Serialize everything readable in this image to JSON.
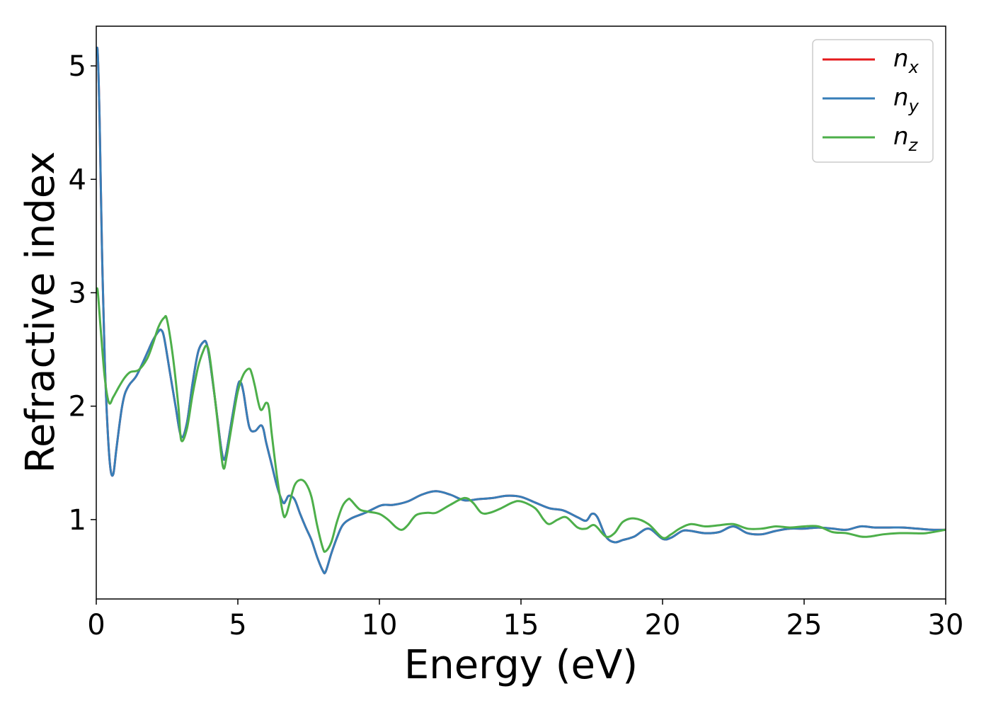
{
  "chart_data": {
    "type": "line",
    "title": "",
    "xlabel": "Energy (eV)",
    "ylabel": "Refractive index",
    "xlim": [
      0,
      30
    ],
    "ylim": [
      0.3,
      5.35
    ],
    "xticks": [
      0,
      5,
      10,
      15,
      20,
      25,
      30
    ],
    "yticks": [
      1,
      2,
      3,
      4,
      5
    ],
    "grid": false,
    "legend_position": "top-right",
    "series": [
      {
        "name": "n",
        "subscript": "x",
        "color": "#e41a1c",
        "x": [
          0.0,
          0.05,
          0.12,
          0.2,
          0.3,
          0.4,
          0.5,
          0.6,
          0.7,
          0.8,
          0.9,
          1.0,
          1.1,
          1.2,
          1.4,
          1.6,
          1.8,
          2.0,
          2.2,
          2.3,
          2.4,
          2.6,
          2.8,
          3.0,
          3.2,
          3.4,
          3.6,
          3.8,
          3.9,
          4.0,
          4.2,
          4.4,
          4.5,
          4.6,
          4.8,
          5.0,
          5.1,
          5.2,
          5.4,
          5.6,
          5.8,
          5.9,
          6.0,
          6.2,
          6.4,
          6.6,
          6.7,
          6.8,
          7.0,
          7.2,
          7.4,
          7.6,
          7.8,
          8.0,
          8.1,
          8.3,
          8.5,
          8.7,
          9.0,
          9.5,
          10.0,
          10.2,
          10.5,
          11.0,
          11.5,
          12.0,
          12.5,
          13.0,
          13.5,
          14.0,
          14.5,
          15.0,
          15.5,
          16.0,
          16.5,
          17.0,
          17.3,
          17.5,
          17.7,
          18.0,
          18.3,
          18.6,
          19.0,
          19.5,
          20.0,
          20.3,
          20.7,
          21.0,
          21.5,
          22.0,
          22.5,
          23.0,
          23.5,
          24.0,
          24.5,
          25.0,
          25.5,
          26.0,
          26.5,
          27.0,
          27.5,
          28.0,
          28.5,
          29.0,
          29.5,
          30.0
        ],
        "y": [
          5.1,
          5.12,
          4.5,
          3.4,
          2.4,
          1.8,
          1.45,
          1.4,
          1.6,
          1.8,
          1.98,
          2.1,
          2.16,
          2.2,
          2.26,
          2.36,
          2.47,
          2.58,
          2.66,
          2.67,
          2.6,
          2.3,
          2.0,
          1.73,
          1.85,
          2.2,
          2.48,
          2.57,
          2.55,
          2.42,
          2.05,
          1.65,
          1.53,
          1.6,
          1.9,
          2.18,
          2.21,
          2.12,
          1.82,
          1.78,
          1.83,
          1.8,
          1.68,
          1.48,
          1.28,
          1.15,
          1.17,
          1.21,
          1.18,
          1.05,
          0.93,
          0.82,
          0.67,
          0.55,
          0.54,
          0.7,
          0.84,
          0.95,
          1.01,
          1.06,
          1.12,
          1.13,
          1.13,
          1.16,
          1.22,
          1.25,
          1.22,
          1.17,
          1.18,
          1.19,
          1.21,
          1.2,
          1.15,
          1.1,
          1.08,
          1.02,
          0.99,
          1.05,
          1.02,
          0.85,
          0.8,
          0.82,
          0.85,
          0.92,
          0.83,
          0.84,
          0.9,
          0.9,
          0.88,
          0.89,
          0.94,
          0.88,
          0.87,
          0.9,
          0.92,
          0.92,
          0.93,
          0.92,
          0.91,
          0.94,
          0.93,
          0.93,
          0.93,
          0.92,
          0.91,
          0.91
        ]
      },
      {
        "name": "n",
        "subscript": "y",
        "color": "#377eb8",
        "x": [
          0.0,
          0.05,
          0.12,
          0.2,
          0.3,
          0.4,
          0.5,
          0.6,
          0.7,
          0.8,
          0.9,
          1.0,
          1.1,
          1.2,
          1.4,
          1.6,
          1.8,
          2.0,
          2.2,
          2.3,
          2.4,
          2.6,
          2.8,
          3.0,
          3.2,
          3.4,
          3.6,
          3.8,
          3.9,
          4.0,
          4.2,
          4.4,
          4.5,
          4.6,
          4.8,
          5.0,
          5.1,
          5.2,
          5.4,
          5.6,
          5.8,
          5.9,
          6.0,
          6.2,
          6.4,
          6.6,
          6.7,
          6.8,
          7.0,
          7.2,
          7.4,
          7.6,
          7.8,
          8.0,
          8.1,
          8.3,
          8.5,
          8.7,
          9.0,
          9.5,
          10.0,
          10.2,
          10.5,
          11.0,
          11.5,
          12.0,
          12.5,
          13.0,
          13.5,
          14.0,
          14.5,
          15.0,
          15.5,
          16.0,
          16.5,
          17.0,
          17.3,
          17.5,
          17.7,
          18.0,
          18.3,
          18.6,
          19.0,
          19.5,
          20.0,
          20.3,
          20.7,
          21.0,
          21.5,
          22.0,
          22.5,
          23.0,
          23.5,
          24.0,
          24.5,
          25.0,
          25.5,
          26.0,
          26.5,
          27.0,
          27.5,
          28.0,
          28.5,
          29.0,
          29.5,
          30.0
        ],
        "y": [
          5.1,
          5.12,
          4.5,
          3.4,
          2.4,
          1.8,
          1.45,
          1.4,
          1.6,
          1.8,
          1.98,
          2.1,
          2.16,
          2.2,
          2.26,
          2.36,
          2.47,
          2.58,
          2.66,
          2.67,
          2.6,
          2.3,
          2.0,
          1.73,
          1.85,
          2.2,
          2.48,
          2.57,
          2.55,
          2.42,
          2.05,
          1.65,
          1.53,
          1.6,
          1.9,
          2.18,
          2.21,
          2.12,
          1.82,
          1.78,
          1.83,
          1.8,
          1.68,
          1.48,
          1.28,
          1.15,
          1.17,
          1.21,
          1.18,
          1.05,
          0.93,
          0.82,
          0.67,
          0.55,
          0.54,
          0.7,
          0.84,
          0.95,
          1.01,
          1.06,
          1.12,
          1.13,
          1.13,
          1.16,
          1.22,
          1.25,
          1.22,
          1.17,
          1.18,
          1.19,
          1.21,
          1.2,
          1.15,
          1.1,
          1.08,
          1.02,
          0.99,
          1.05,
          1.02,
          0.85,
          0.8,
          0.82,
          0.85,
          0.92,
          0.83,
          0.84,
          0.9,
          0.9,
          0.88,
          0.89,
          0.94,
          0.88,
          0.87,
          0.9,
          0.92,
          0.92,
          0.93,
          0.92,
          0.91,
          0.94,
          0.93,
          0.93,
          0.93,
          0.92,
          0.91,
          0.91
        ]
      },
      {
        "name": "n",
        "subscript": "z",
        "color": "#4daf4a",
        "x": [
          0.0,
          0.05,
          0.15,
          0.3,
          0.45,
          0.6,
          0.8,
          1.0,
          1.2,
          1.5,
          1.8,
          2.0,
          2.2,
          2.4,
          2.5,
          2.7,
          2.9,
          3.0,
          3.2,
          3.4,
          3.6,
          3.8,
          3.9,
          4.0,
          4.2,
          4.4,
          4.5,
          4.6,
          4.8,
          5.0,
          5.2,
          5.4,
          5.5,
          5.6,
          5.8,
          6.0,
          6.1,
          6.2,
          6.4,
          6.6,
          6.7,
          6.8,
          7.0,
          7.2,
          7.4,
          7.6,
          7.8,
          8.0,
          8.1,
          8.3,
          8.5,
          8.7,
          8.9,
          9.0,
          9.3,
          9.6,
          10.0,
          10.3,
          10.6,
          10.8,
          11.0,
          11.3,
          11.7,
          12.0,
          12.5,
          13.0,
          13.3,
          13.6,
          13.9,
          14.3,
          14.7,
          15.0,
          15.5,
          15.8,
          16.0,
          16.3,
          16.6,
          17.0,
          17.3,
          17.6,
          18.0,
          18.3,
          18.6,
          19.0,
          19.5,
          20.0,
          20.3,
          20.6,
          21.0,
          21.5,
          22.0,
          22.5,
          23.0,
          23.5,
          24.0,
          24.5,
          25.0,
          25.5,
          26.0,
          26.5,
          27.0,
          27.3,
          27.8,
          28.3,
          28.8,
          29.3,
          30.0
        ],
        "y": [
          3.0,
          3.02,
          2.7,
          2.25,
          2.03,
          2.08,
          2.17,
          2.25,
          2.3,
          2.32,
          2.42,
          2.55,
          2.7,
          2.78,
          2.76,
          2.45,
          2.0,
          1.7,
          1.8,
          2.1,
          2.35,
          2.5,
          2.53,
          2.45,
          2.05,
          1.6,
          1.45,
          1.55,
          1.85,
          2.13,
          2.28,
          2.33,
          2.28,
          2.18,
          1.97,
          2.03,
          1.98,
          1.75,
          1.35,
          1.05,
          1.04,
          1.12,
          1.3,
          1.35,
          1.32,
          1.2,
          0.95,
          0.75,
          0.72,
          0.8,
          0.98,
          1.12,
          1.18,
          1.17,
          1.09,
          1.07,
          1.05,
          1.0,
          0.93,
          0.91,
          0.95,
          1.04,
          1.06,
          1.06,
          1.13,
          1.19,
          1.15,
          1.06,
          1.06,
          1.1,
          1.15,
          1.16,
          1.1,
          1.0,
          0.96,
          1.0,
          1.02,
          0.93,
          0.92,
          0.95,
          0.85,
          0.88,
          0.98,
          1.01,
          0.96,
          0.84,
          0.87,
          0.92,
          0.96,
          0.94,
          0.95,
          0.96,
          0.92,
          0.92,
          0.94,
          0.93,
          0.94,
          0.94,
          0.89,
          0.88,
          0.85,
          0.85,
          0.87,
          0.88,
          0.88,
          0.88,
          0.91
        ]
      }
    ]
  }
}
